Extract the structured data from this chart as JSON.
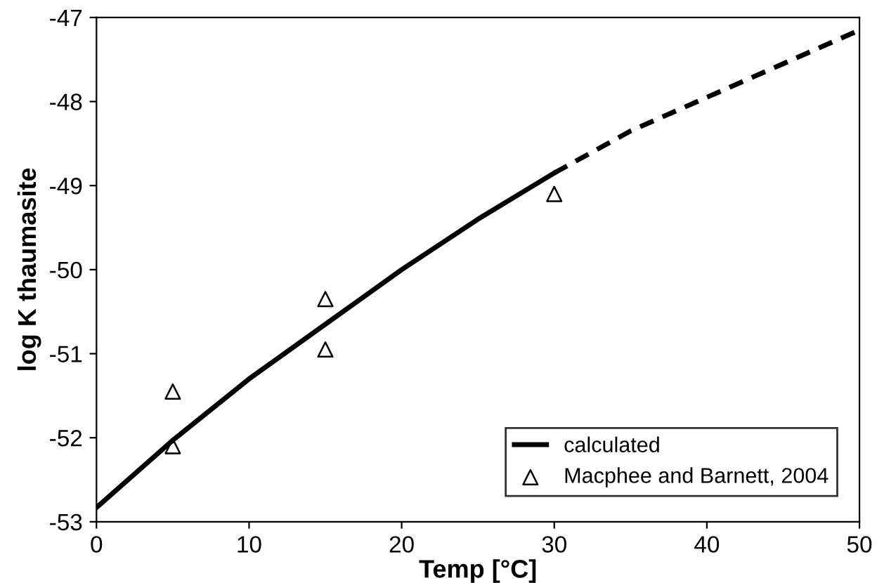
{
  "chart_data": {
    "type": "line",
    "xlabel": "Temp [°C]",
    "ylabel": "log K thaumasite",
    "xlim": [
      0,
      50
    ],
    "xticks": [
      0,
      10,
      20,
      30,
      40,
      50
    ],
    "ylim": [
      -53,
      -47
    ],
    "yticks": [
      -53,
      -52,
      -51,
      -50,
      -49,
      -48,
      -47
    ],
    "grid": false,
    "legend": "bottom right",
    "series": [
      {
        "name": "calculated",
        "color": "#000000",
        "line_style": "solid",
        "x": [
          0,
          5,
          10,
          15,
          20,
          25,
          30
        ],
        "values": [
          -52.83,
          -52.03,
          -51.3,
          -50.65,
          -50.0,
          -49.4,
          -48.85
        ]
      },
      {
        "color": "#000000",
        "line_style": "dashed",
        "x": [
          30,
          35,
          40,
          45,
          50
        ],
        "values": [
          -48.85,
          -48.35,
          -47.95,
          -47.55,
          -47.15
        ]
      },
      {
        "name": "Macphee and Barnett, 2004",
        "type": "scatter",
        "color": "#000000",
        "marker": "triangle",
        "x": [
          5,
          5,
          15,
          15,
          30
        ],
        "values": [
          -51.45,
          -52.1,
          -50.35,
          -50.95,
          -49.1
        ]
      }
    ]
  }
}
